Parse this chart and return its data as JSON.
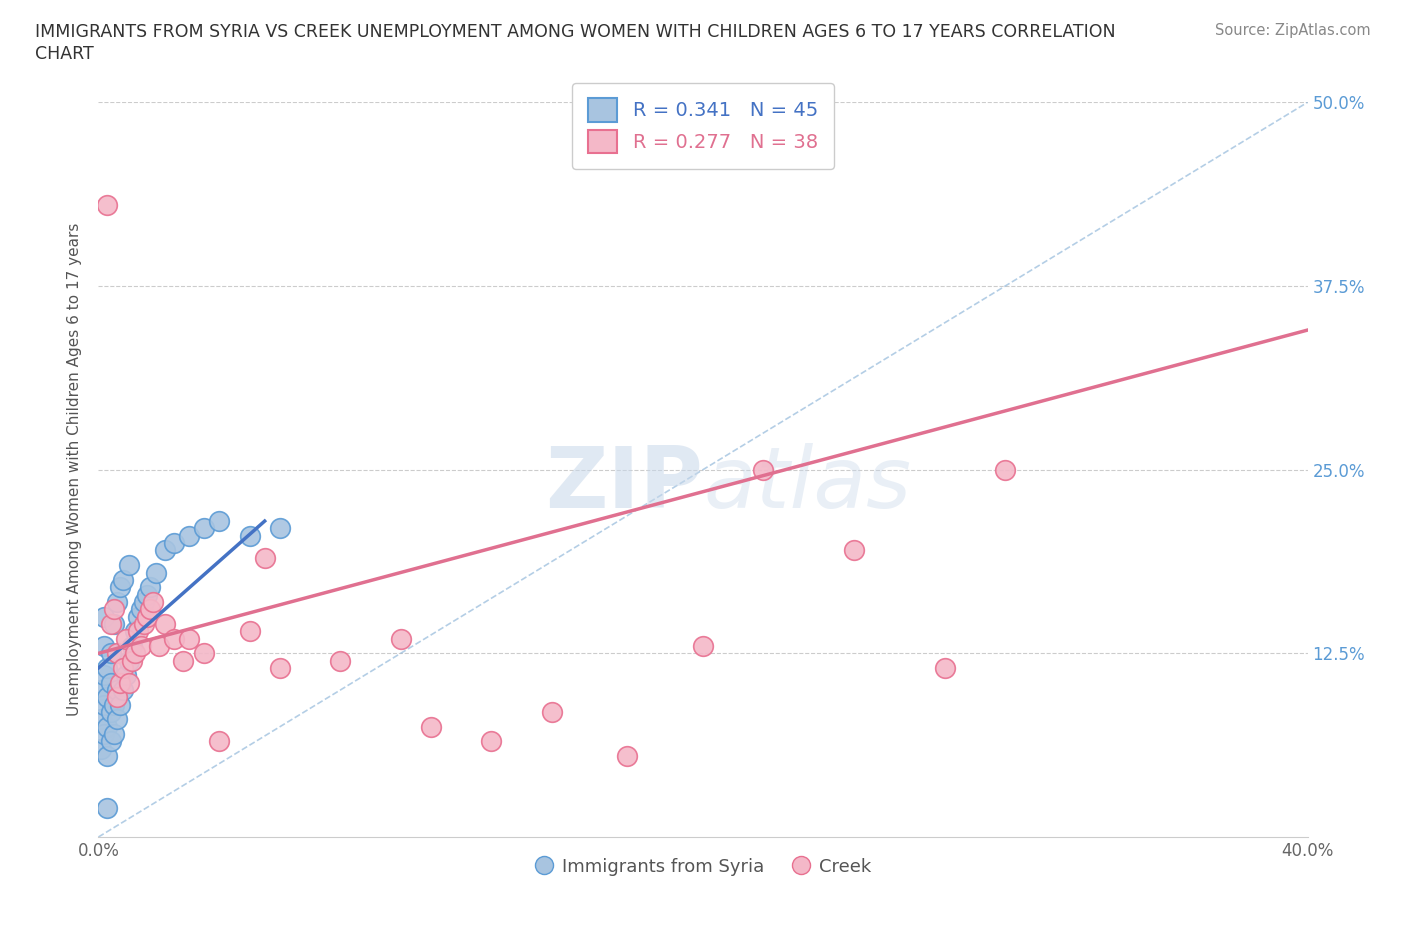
{
  "title_line1": "IMMIGRANTS FROM SYRIA VS CREEK UNEMPLOYMENT AMONG WOMEN WITH CHILDREN AGES 6 TO 17 YEARS CORRELATION",
  "title_line2": "CHART",
  "source": "Source: ZipAtlas.com",
  "ylabel": "Unemployment Among Women with Children Ages 6 to 17 years",
  "xlim": [
    0.0,
    0.4
  ],
  "ylim": [
    0.0,
    0.5
  ],
  "legend1_label": "R = 0.341   N = 45",
  "legend2_label": "R = 0.277   N = 38",
  "legend_bottom_label1": "Immigrants from Syria",
  "legend_bottom_label2": "Creek",
  "blue_color": "#a8c4e0",
  "blue_edge_color": "#5b9bd5",
  "pink_color": "#f4b8c8",
  "pink_edge_color": "#e87090",
  "trend_blue_color": "#4472c4",
  "trend_pink_color": "#e07090",
  "diag_color": "#8cb4d8",
  "watermark_zip": "ZIP",
  "watermark_atlas": "atlas",
  "blue_trend_x0": 0.0,
  "blue_trend_y0": 0.115,
  "blue_trend_x1": 0.055,
  "blue_trend_y1": 0.215,
  "pink_trend_x0": 0.0,
  "pink_trend_y0": 0.125,
  "pink_trend_x1": 0.4,
  "pink_trend_y1": 0.345,
  "blue_x": [
    0.001,
    0.001,
    0.001,
    0.002,
    0.002,
    0.002,
    0.002,
    0.002,
    0.003,
    0.003,
    0.003,
    0.003,
    0.004,
    0.004,
    0.004,
    0.004,
    0.005,
    0.005,
    0.005,
    0.006,
    0.006,
    0.006,
    0.007,
    0.007,
    0.008,
    0.008,
    0.009,
    0.01,
    0.01,
    0.011,
    0.012,
    0.013,
    0.014,
    0.015,
    0.016,
    0.017,
    0.019,
    0.022,
    0.025,
    0.03,
    0.035,
    0.04,
    0.05,
    0.06,
    0.003
  ],
  "blue_y": [
    0.06,
    0.08,
    0.1,
    0.07,
    0.09,
    0.11,
    0.13,
    0.15,
    0.055,
    0.075,
    0.095,
    0.115,
    0.065,
    0.085,
    0.105,
    0.125,
    0.07,
    0.09,
    0.145,
    0.08,
    0.1,
    0.16,
    0.09,
    0.17,
    0.1,
    0.175,
    0.11,
    0.12,
    0.185,
    0.13,
    0.14,
    0.15,
    0.155,
    0.16,
    0.165,
    0.17,
    0.18,
    0.195,
    0.2,
    0.205,
    0.21,
    0.215,
    0.205,
    0.21,
    0.02
  ],
  "pink_x": [
    0.003,
    0.004,
    0.005,
    0.006,
    0.006,
    0.007,
    0.008,
    0.009,
    0.01,
    0.011,
    0.012,
    0.013,
    0.014,
    0.015,
    0.016,
    0.017,
    0.018,
    0.02,
    0.022,
    0.025,
    0.028,
    0.03,
    0.035,
    0.04,
    0.05,
    0.055,
    0.06,
    0.08,
    0.1,
    0.11,
    0.13,
    0.15,
    0.175,
    0.2,
    0.22,
    0.25,
    0.28,
    0.3
  ],
  "pink_y": [
    0.43,
    0.145,
    0.155,
    0.095,
    0.125,
    0.105,
    0.115,
    0.135,
    0.105,
    0.12,
    0.125,
    0.14,
    0.13,
    0.145,
    0.15,
    0.155,
    0.16,
    0.13,
    0.145,
    0.135,
    0.12,
    0.135,
    0.125,
    0.065,
    0.14,
    0.19,
    0.115,
    0.12,
    0.135,
    0.075,
    0.065,
    0.085,
    0.055,
    0.13,
    0.25,
    0.195,
    0.115,
    0.25
  ]
}
